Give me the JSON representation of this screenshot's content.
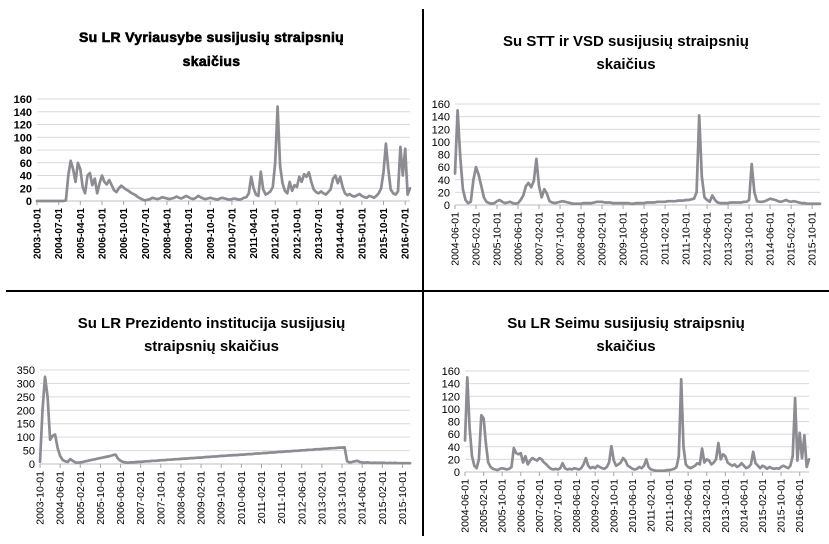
{
  "colors": {
    "line": "#8c8c93",
    "grid": "#d9d9d9",
    "axis": "#bfbfbf",
    "tick": "#a6a6a6",
    "text": "#000000",
    "divider": "#000000",
    "background": "#ffffff"
  },
  "chart_data": [
    {
      "id": "vyriausybe",
      "type": "line",
      "title": "Su LR Vyriausybe susijusių straipsnių skaičius",
      "title_lines": [
        "Su LR Vyriausybe susijusių straipsnių",
        "skaičius"
      ],
      "bold_labels": true,
      "grid": true,
      "legend": "none",
      "ylim": [
        0,
        160
      ],
      "ystep": 20,
      "x_unit": "month",
      "x_tick_every": 9,
      "x_tick_labels": [
        "2003-10-01",
        "2004-07-01",
        "2005-04-01",
        "2006-01-01",
        "2006-10-01",
        "2007-07-01",
        "2008-04-01",
        "2009-01-01",
        "2009-10-01",
        "2010-07-01",
        "2011-04-01",
        "2012-01-01",
        "2012-10-01",
        "2013-07-01",
        "2014-04-01",
        "2015-01-01",
        "2015-10-01",
        "2016-07-01"
      ],
      "values": [
        0,
        0,
        0,
        0,
        0,
        0,
        0,
        0,
        0,
        0,
        0,
        0,
        1,
        40,
        63,
        50,
        30,
        60,
        50,
        22,
        12,
        40,
        44,
        25,
        35,
        12,
        28,
        40,
        30,
        26,
        33,
        25,
        17,
        14,
        20,
        24,
        21,
        18,
        16,
        13,
        11,
        9,
        6,
        4,
        2,
        1,
        2,
        3,
        5,
        4,
        3,
        4,
        6,
        5,
        4,
        3,
        4,
        5,
        7,
        5,
        4,
        6,
        8,
        6,
        4,
        3,
        5,
        8,
        6,
        4,
        3,
        4,
        5,
        4,
        3,
        2,
        4,
        5,
        4,
        3,
        2,
        3,
        4,
        3,
        2,
        3,
        5,
        6,
        12,
        38,
        20,
        10,
        8,
        46,
        18,
        10,
        12,
        15,
        22,
        60,
        148,
        55,
        28,
        16,
        12,
        30,
        16,
        25,
        22,
        38,
        30,
        42,
        38,
        45,
        30,
        18,
        14,
        12,
        15,
        12,
        10,
        14,
        18,
        35,
        40,
        28,
        38,
        22,
        12,
        9,
        11,
        8,
        7,
        9,
        11,
        8,
        6,
        5,
        8,
        7,
        5,
        8,
        12,
        20,
        45,
        90,
        50,
        18,
        12,
        10,
        15,
        85,
        40,
        82,
        10,
        20
      ]
    },
    {
      "id": "stt-vsd",
      "type": "line",
      "title": "Su STT ir VSD susijusių straipsnių skaičius",
      "title_lines": [
        "Su STT ir VSD susijusių straipsnių",
        "skaičius"
      ],
      "bold_labels": false,
      "grid": true,
      "legend": "none",
      "ylim": [
        0,
        160
      ],
      "ystep": 20,
      "x_unit": "month",
      "x_tick_every": 8,
      "x_tick_labels": [
        "2004-06-01",
        "2005-02-01",
        "2005-10-01",
        "2006-06-01",
        "2007-02-01",
        "2007-10-01",
        "2008-06-01",
        "2009-02-01",
        "2009-10-01",
        "2010-06-01",
        "2011-02-01",
        "2011-10-01",
        "2012-06-01",
        "2013-02-01",
        "2013-10-01",
        "2014-06-01",
        "2015-02-01",
        "2015-10-01"
      ],
      "values": [
        50,
        150,
        75,
        25,
        8,
        3,
        5,
        40,
        60,
        48,
        30,
        12,
        5,
        3,
        2,
        3,
        6,
        8,
        5,
        3,
        4,
        5,
        3,
        2,
        3,
        8,
        15,
        30,
        35,
        28,
        38,
        73,
        30,
        12,
        25,
        18,
        6,
        4,
        3,
        4,
        5,
        6,
        5,
        4,
        3,
        2,
        2,
        2,
        2,
        3,
        3,
        3,
        3,
        4,
        5,
        5,
        5,
        4,
        4,
        4,
        3,
        3,
        3,
        3,
        3,
        3,
        3,
        2,
        2,
        3,
        3,
        3,
        3,
        4,
        4,
        4,
        4,
        5,
        5,
        5,
        5,
        6,
        6,
        6,
        6,
        7,
        7,
        7,
        8,
        8,
        9,
        10,
        20,
        142,
        45,
        12,
        8,
        5,
        15,
        8,
        4,
        3,
        3,
        3,
        3,
        4,
        4,
        4,
        4,
        4,
        5,
        5,
        8,
        65,
        20,
        6,
        5,
        5,
        6,
        8,
        10,
        9,
        8,
        6,
        5,
        6,
        8,
        6,
        5,
        6,
        5,
        4,
        3,
        3,
        2,
        2,
        2,
        2,
        2,
        2
      ]
    },
    {
      "id": "prezidentas",
      "type": "line",
      "title": "Su LR Prezidento institucija susijusių straipsnių skaičius",
      "title_lines": [
        "Su LR Prezidento institucija susijusių",
        "straipsnių skaičius"
      ],
      "bold_labels": false,
      "grid": true,
      "legend": "none",
      "ylim": [
        0,
        350
      ],
      "ystep": 50,
      "x_unit": "month",
      "x_tick_every": 8,
      "x_tick_labels": [
        "2003-10-01",
        "2004-06-01",
        "2005-02-01",
        "2005-10-01",
        "2006-06-01",
        "2007-02-01",
        "2007-10-01",
        "2008-06-01",
        "2009-02-01",
        "2009-10-01",
        "2010-06-01",
        "2011-02-01",
        "2011-10-01",
        "2012-06-01",
        "2013-02-01",
        "2013-10-01",
        "2014-06-01",
        "2015-02-01",
        "2015-10-01"
      ],
      "values": [
        8,
        200,
        325,
        250,
        90,
        105,
        110,
        60,
        30,
        15,
        10,
        8,
        18,
        12,
        6,
        5,
        6,
        8,
        10,
        12,
        14,
        16,
        18,
        20,
        22,
        24,
        26,
        28,
        30,
        33,
        35,
        20,
        12,
        8,
        6,
        5,
        6,
        6,
        7,
        8,
        8,
        9,
        10,
        10,
        11,
        12,
        12,
        13,
        14,
        14,
        15,
        16,
        16,
        17,
        18,
        18,
        19,
        20,
        20,
        21,
        22,
        22,
        23,
        24,
        24,
        25,
        26,
        26,
        27,
        28,
        28,
        29,
        30,
        30,
        31,
        32,
        32,
        33,
        33,
        34,
        35,
        35,
        36,
        37,
        37,
        38,
        39,
        39,
        40,
        41,
        41,
        42,
        43,
        43,
        44,
        45,
        45,
        46,
        47,
        47,
        48,
        49,
        49,
        50,
        51,
        51,
        52,
        53,
        53,
        54,
        55,
        55,
        56,
        57,
        57,
        58,
        59,
        59,
        60,
        61,
        61,
        62,
        10,
        6,
        8,
        10,
        12,
        8,
        6,
        5,
        6,
        5,
        4,
        5,
        4,
        4,
        5,
        4,
        3,
        4,
        3,
        4,
        3,
        3,
        3,
        3,
        3,
        3
      ]
    },
    {
      "id": "seimas",
      "type": "line",
      "title": "Su LR Seimu susijusių straipsnių skaičius",
      "title_lines": [
        "Su LR Seimu susijusių straipsnių",
        "skaičius"
      ],
      "bold_labels": false,
      "grid": true,
      "legend": "none",
      "ylim": [
        0,
        160
      ],
      "ystep": 20,
      "x_unit": "month",
      "x_tick_every": 8,
      "x_tick_labels": [
        "2004-06-01",
        "2005-02-01",
        "2005-10-01",
        "2006-06-01",
        "2007-02-01",
        "2007-10-01",
        "2008-06-01",
        "2009-02-01",
        "2009-10-01",
        "2010-06-01",
        "2011-02-01",
        "2011-10-01",
        "2012-06-01",
        "2013-02-01",
        "2013-10-01",
        "2014-06-01",
        "2015-02-01",
        "2015-10-01",
        "2016-06-01"
      ],
      "values": [
        50,
        150,
        70,
        25,
        10,
        6,
        20,
        90,
        85,
        45,
        15,
        8,
        5,
        4,
        3,
        5,
        6,
        5,
        4,
        5,
        8,
        38,
        30,
        28,
        30,
        15,
        25,
        12,
        18,
        22,
        20,
        18,
        22,
        20,
        15,
        12,
        8,
        5,
        4,
        5,
        4,
        6,
        14,
        6,
        4,
        5,
        4,
        6,
        5,
        4,
        6,
        12,
        22,
        10,
        6,
        8,
        6,
        10,
        8,
        6,
        5,
        8,
        15,
        41,
        18,
        10,
        12,
        15,
        22,
        18,
        10,
        8,
        5,
        4,
        5,
        8,
        6,
        10,
        20,
        8,
        4,
        3,
        2,
        2,
        2,
        2,
        2,
        3,
        3,
        4,
        5,
        8,
        25,
        147,
        40,
        12,
        8,
        6,
        8,
        10,
        14,
        12,
        37,
        15,
        20,
        18,
        12,
        15,
        20,
        46,
        20,
        28,
        25,
        15,
        12,
        10,
        12,
        8,
        10,
        14,
        10,
        6,
        8,
        12,
        32,
        14,
        10,
        6,
        10,
        8,
        5,
        8,
        6,
        5,
        6,
        5,
        8,
        10,
        8,
        6,
        10,
        25,
        117,
        18,
        62,
        22,
        58,
        8,
        20
      ]
    }
  ]
}
